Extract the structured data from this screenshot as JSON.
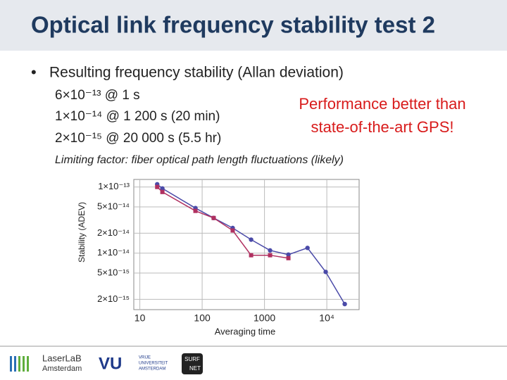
{
  "slide": {
    "title": "Optical link frequency stability test 2",
    "bullet": "Resulting frequency stability (Allan deviation)",
    "results": [
      "6×10⁻¹³ @ 1 s",
      "1×10⁻¹⁴ @ 1 200 s (20 min)",
      "2×10⁻¹⁵ @ 20 000 s (5.5 hr)"
    ],
    "callout": [
      "Performance better than",
      "state-of-the-art GPS!"
    ],
    "note": "Limiting factor: fiber optical path length fluctuations (likely)"
  },
  "chart_data": {
    "type": "line",
    "xlabel": "Averaging time",
    "ylabel": "Stability (ADEV)",
    "log_x": true,
    "log_y": true,
    "grid": true,
    "x": [
      19,
      23,
      78,
      153,
      309,
      610,
      1230,
      2420,
      4900,
      9600,
      19400
    ],
    "series": [
      {
        "color": "#4a4aa8",
        "marker": "circle",
        "values": [
          1.1e-13,
          9.5e-14,
          4.8e-14,
          3.4e-14,
          2.4e-14,
          1.6e-14,
          1.1e-14,
          9.5e-15,
          1.2e-14,
          5.2e-15,
          1.7e-15
        ]
      },
      {
        "color": "#b03060",
        "marker": "square",
        "values": [
          1e-13,
          8.4e-14,
          4.35e-14,
          3.4e-14,
          2.2e-14,
          9.3e-15,
          9.3e-15,
          8.4e-15,
          null,
          null,
          null
        ]
      }
    ],
    "xlim": [
      8,
      33000
    ],
    "ylim": [
      1.4e-15,
      1.3e-13
    ],
    "xticks": [
      10,
      100,
      1000,
      {
        "value": 10000,
        "label": "10⁴"
      }
    ],
    "yticks": [
      {
        "value": 1e-13,
        "label": "1×10⁻¹³"
      },
      {
        "value": 5e-14,
        "label": "5×10⁻¹⁴"
      },
      {
        "value": 2e-14,
        "label": "2×10⁻¹⁴"
      },
      {
        "value": 1e-14,
        "label": "1×10⁻¹⁴"
      },
      {
        "value": 5e-15,
        "label": "5×10⁻¹⁵"
      },
      {
        "value": 2e-15,
        "label": "2×10⁻¹⁵"
      }
    ]
  },
  "footer": {
    "laserlab": [
      "LaserLaB",
      "Amsterdam"
    ],
    "vu": "VU",
    "vu_name": [
      "VRIJE",
      "UNIVERSITEIT",
      "AMSTERDAM"
    ],
    "surf": [
      "SURF",
      "NET"
    ]
  }
}
